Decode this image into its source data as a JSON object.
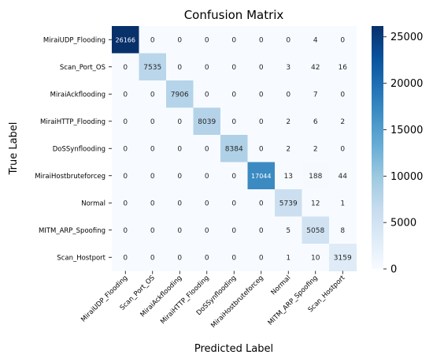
{
  "chart_data": {
    "type": "heatmap",
    "title": "Confusion Matrix",
    "xlabel": "Predicted Label",
    "ylabel": "True Label",
    "row_labels": [
      "MiraiUDP_Flooding",
      "Scan_Port_OS",
      "MiraiAckflooding",
      "MiraiHTTP_Flooding",
      "DoSSynflooding",
      "MiraiHostbruteforceg",
      "Normal",
      "MITM_ARP_Spoofing",
      "Scan_Hostport"
    ],
    "col_labels": [
      "MiraiUDP_Flooding",
      "Scan_Port_OS",
      "MiraiAckflooding",
      "MiraiHTTP_Flooding",
      "DoSSynflooding",
      "MiraiHostbruteforceg",
      "Normal",
      "MITM_ARP_Spoofing",
      "Scan_Hostport"
    ],
    "values": [
      [
        26166,
        0,
        0,
        0,
        0,
        0,
        0,
        4,
        0
      ],
      [
        0,
        7535,
        0,
        0,
        0,
        0,
        3,
        42,
        16
      ],
      [
        0,
        0,
        7906,
        0,
        0,
        0,
        0,
        7,
        0
      ],
      [
        0,
        0,
        0,
        8039,
        0,
        0,
        2,
        6,
        2
      ],
      [
        0,
        0,
        0,
        0,
        8384,
        0,
        2,
        2,
        0
      ],
      [
        0,
        0,
        0,
        0,
        0,
        17044,
        13,
        188,
        44
      ],
      [
        0,
        0,
        0,
        0,
        0,
        0,
        5739,
        12,
        1
      ],
      [
        0,
        0,
        0,
        0,
        0,
        0,
        5,
        5058,
        8
      ],
      [
        0,
        0,
        0,
        0,
        0,
        0,
        1,
        10,
        3159
      ]
    ],
    "colormap": "Blues",
    "vmin": 0,
    "vmax": 26166,
    "colorbar_ticks": [
      0,
      5000,
      10000,
      15000,
      20000,
      25000
    ]
  }
}
